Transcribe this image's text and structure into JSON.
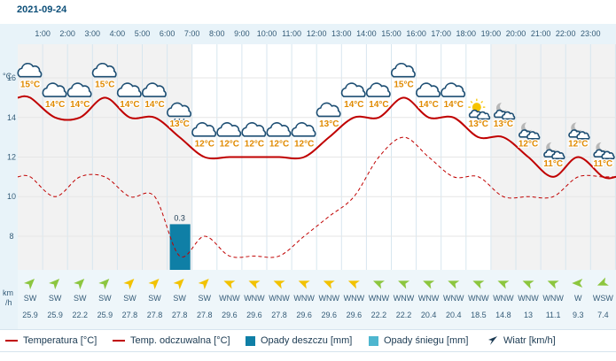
{
  "date": "2021-09-24",
  "hours": [
    "1:00",
    "2:00",
    "3:00",
    "4:00",
    "5:00",
    "6:00",
    "7:00",
    "8:00",
    "9:00",
    "10:00",
    "11:00",
    "12:00",
    "13:00",
    "14:00",
    "15:00",
    "16:00",
    "17:00",
    "18:00",
    "19:00",
    "20:00",
    "21:00",
    "22:00",
    "23:00"
  ],
  "y_unit": "°C",
  "wind_unit_line1": "km",
  "wind_unit_line2": "/h",
  "chart_data": {
    "type": "line",
    "x": [
      "0:30",
      "1:30",
      "2:30",
      "3:30",
      "4:30",
      "5:30",
      "6:30",
      "7:30",
      "8:30",
      "9:30",
      "10:30",
      "11:30",
      "12:30",
      "13:30",
      "14:30",
      "15:30",
      "16:30",
      "17:30",
      "18:30",
      "19:30",
      "20:30",
      "21:30",
      "22:30",
      "23:30"
    ],
    "y_ticks": [
      8,
      10,
      12,
      14,
      16
    ],
    "ylim": [
      6.3,
      17.7
    ],
    "series": [
      {
        "name": "Temperatura [°C]",
        "style": "solid",
        "color": "#c00000",
        "values": [
          15,
          14,
          14,
          15,
          14,
          14,
          13,
          12,
          12,
          12,
          12,
          12,
          13,
          14,
          14,
          15,
          14,
          14,
          13,
          13,
          12,
          11,
          12,
          11
        ]
      },
      {
        "name": "Temp. odczuwalna [°C]",
        "style": "dashed",
        "color": "#c00000",
        "values": [
          11,
          10,
          11,
          11,
          10,
          10,
          7,
          8,
          7,
          7,
          7,
          8,
          9,
          10,
          12,
          13,
          12,
          11,
          11,
          10,
          10,
          10,
          11,
          11
        ]
      }
    ],
    "temp_labels": [
      "15°C",
      "14°C",
      "14°C",
      "15°C",
      "14°C",
      "14°C",
      "13°C",
      "12°C",
      "12°C",
      "12°C",
      "12°C",
      "12°C",
      "13°C",
      "14°C",
      "14°C",
      "15°C",
      "14°C",
      "14°C",
      "13°C",
      "13°C",
      "12°C",
      "11°C",
      "12°C",
      "11°C"
    ],
    "precipitation": {
      "name": "Opady deszczu [mm]",
      "color": "#0f7fa6",
      "values": [
        0,
        0,
        0,
        0,
        0,
        0,
        0.3,
        0,
        0,
        0,
        0,
        0,
        0,
        0,
        0,
        0,
        0,
        0,
        0,
        0,
        0,
        0,
        0,
        0
      ],
      "labels": [
        "",
        "",
        "",
        "",
        "",
        "",
        "0.3",
        "",
        "",
        "",
        "",
        "",
        "",
        "",
        "",
        "",
        "",
        "",
        "",
        "",
        "",
        "",
        "",
        ""
      ]
    },
    "snow": {
      "name": "Opady śniegu [mm]",
      "color": "#4eb6cf"
    },
    "wind": {
      "name": "Wiatr [km/h]"
    },
    "wind_dirs": [
      "SW",
      "SW",
      "SW",
      "SW",
      "SW",
      "SW",
      "SW",
      "SW",
      "WNW",
      "WNW",
      "WNW",
      "WNW",
      "WNW",
      "WNW",
      "WNW",
      "WNW",
      "WNW",
      "WNW",
      "WNW",
      "WNW",
      "WNW",
      "WNW",
      "W",
      "WSW"
    ],
    "wind_speeds": [
      "25.9",
      "25.9",
      "22.2",
      "25.9",
      "27.8",
      "27.8",
      "27.8",
      "27.8",
      "29.6",
      "29.6",
      "27.8",
      "29.6",
      "29.6",
      "29.6",
      "22.2",
      "22.2",
      "20.4",
      "20.4",
      "18.5",
      "14.8",
      "13",
      "11.1",
      "9.3",
      "7.4"
    ],
    "wind_colors": [
      "#8cc63f",
      "#8cc63f",
      "#8cc63f",
      "#8cc63f",
      "#f2c200",
      "#f2c200",
      "#f2c200",
      "#f2c200",
      "#f2c200",
      "#f2c200",
      "#f2c200",
      "#f2c200",
      "#f2c200",
      "#f2c200",
      "#8cc63f",
      "#8cc63f",
      "#8cc63f",
      "#8cc63f",
      "#8cc63f",
      "#8cc63f",
      "#8cc63f",
      "#8cc63f",
      "#8cc63f",
      "#8cc63f"
    ],
    "weather_icons": [
      "cloud-icon",
      "cloud-icon",
      "cloud-icon",
      "cloud-icon",
      "cloud-icon",
      "cloud-icon",
      "cloud-rain-icon",
      "cloud-icon",
      "cloud-icon",
      "cloud-icon",
      "cloud-icon",
      "cloud-icon",
      "cloud-icon",
      "cloud-icon",
      "cloud-icon",
      "cloud-icon",
      "cloud-icon",
      "cloud-icon",
      "sun-cloud-icon",
      "moon-cloud-icon",
      "moon-cloud-icon",
      "moon-cloud-icon",
      "moon-cloud-icon",
      "moon-cloud-icon"
    ]
  },
  "legend": {
    "temp": "Temperatura [°C]",
    "feels": "Temp. odczuwalna [°C]",
    "rain": "Opady deszczu [mm]",
    "snow": "Opady śniegu [mm]",
    "wind": "Wiatr [km/h]"
  },
  "colors": {
    "night_bg": "#f2f2f2",
    "day_bg": "#ffffff",
    "header_bg": "#e8f3f9",
    "label_orange": "#e08a00",
    "axis_text": "#355c78"
  }
}
